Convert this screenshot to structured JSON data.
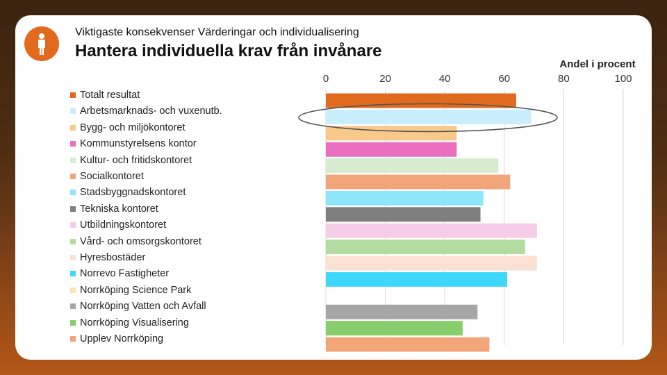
{
  "slide": {
    "subtitle": "Viktigaste konsekvenser Värderingar och individualisering",
    "title": "Hantera individuella krav från invånare",
    "icon": "person-icon",
    "accent_color": "#e26a1f"
  },
  "chart_data": {
    "type": "bar",
    "orientation": "horizontal",
    "title": "",
    "axis_title": "Andel i procent",
    "xlim": [
      0,
      100
    ],
    "ticks": [
      "0",
      "20",
      "40",
      "60",
      "80",
      "100"
    ],
    "tick_values": [
      0,
      20,
      40,
      60,
      80,
      100
    ],
    "grid": true,
    "legend_position": "left",
    "highlighted_category": "Arbetsmarknads- och vuxenutb.",
    "series": [
      {
        "name": "Totalt resultat",
        "value": 64,
        "color": "#e26a1f"
      },
      {
        "name": "Arbetsmarknads- och vuxenutb.",
        "value": 69,
        "color": "#c8effb"
      },
      {
        "name": "Bygg- och miljökontoret",
        "value": 44,
        "color": "#f8c98a"
      },
      {
        "name": "Kommunstyrelsens kontor",
        "value": 44,
        "color": "#ea6fc0"
      },
      {
        "name": "Kultur- och fritidskontoret",
        "value": 58,
        "color": "#d7eccf"
      },
      {
        "name": "Socialkontoret",
        "value": 62,
        "color": "#f2a57a"
      },
      {
        "name": "Stadsbyggnadskontoret",
        "value": 53,
        "color": "#8ee6fa"
      },
      {
        "name": "Tekniska kontoret",
        "value": 52,
        "color": "#7f7f7f"
      },
      {
        "name": "Utbildningskontoret",
        "value": 71,
        "color": "#f5cde7"
      },
      {
        "name": "Vård- och omsorgskontoret",
        "value": 67,
        "color": "#b3dda0"
      },
      {
        "name": "Hyresbostäder",
        "value": 71,
        "color": "#fbe1d3"
      },
      {
        "name": "Norrevo Fastigheter",
        "value": 61,
        "color": "#3fd7fb"
      },
      {
        "name": "Norrköping Science Park",
        "value": null,
        "color": "#fbe0b9"
      },
      {
        "name": "Norrköping Vatten och Avfall",
        "value": 51,
        "color": "#a6a6a6"
      },
      {
        "name": "Norrköping Visualisering",
        "value": 46,
        "color": "#86cf6c"
      },
      {
        "name": "Upplev Norrköping",
        "value": 55,
        "color": "#f3a57a"
      }
    ]
  }
}
